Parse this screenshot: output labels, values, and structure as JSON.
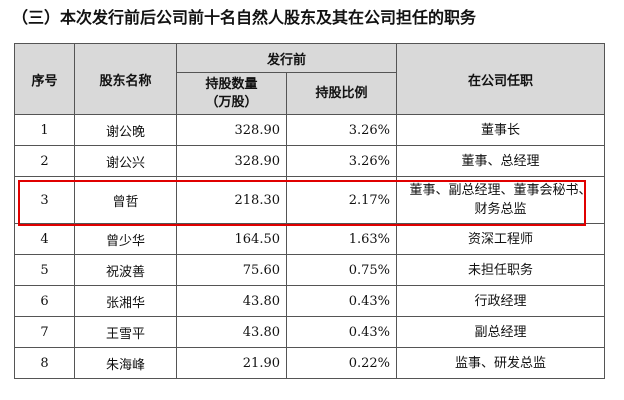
{
  "title": "（三）本次发行前后公司前十名自然人股东及其在公司担任的职务",
  "table": {
    "headers": {
      "index": "序号",
      "name": "股东名称",
      "group": "发行前",
      "quantity_line1": "持股数量",
      "quantity_line2": "（万股）",
      "ratio": "持股比例",
      "role": "在公司任职"
    },
    "rows": [
      {
        "index": "1",
        "name": "谢公晚",
        "quantity": "328.90",
        "ratio": "3.26%",
        "role": "董事长",
        "role_line2": ""
      },
      {
        "index": "2",
        "name": "谢公兴",
        "quantity": "328.90",
        "ratio": "3.26%",
        "role": "董事、总经理",
        "role_line2": ""
      },
      {
        "index": "3",
        "name": "曾哲",
        "quantity": "218.30",
        "ratio": "2.17%",
        "role": "董事、副总经理、董事会秘书、",
        "role_line2": "财务总监"
      },
      {
        "index": "4",
        "name": "曾少华",
        "quantity": "164.50",
        "ratio": "1.63%",
        "role": "资深工程师",
        "role_line2": ""
      },
      {
        "index": "5",
        "name": "祝波善",
        "quantity": "75.60",
        "ratio": "0.75%",
        "role": "未担任职务",
        "role_line2": ""
      },
      {
        "index": "6",
        "name": "张湘华",
        "quantity": "43.80",
        "ratio": "0.43%",
        "role": "行政经理",
        "role_line2": ""
      },
      {
        "index": "7",
        "name": "王雪平",
        "quantity": "43.80",
        "ratio": "0.43%",
        "role": "副总经理",
        "role_line2": ""
      },
      {
        "index": "8",
        "name": "朱海峰",
        "quantity": "21.90",
        "ratio": "0.22%",
        "role": "监事、研发总监",
        "role_line2": ""
      }
    ]
  },
  "highlight": {
    "row_index": "3",
    "color": "#e00000"
  }
}
